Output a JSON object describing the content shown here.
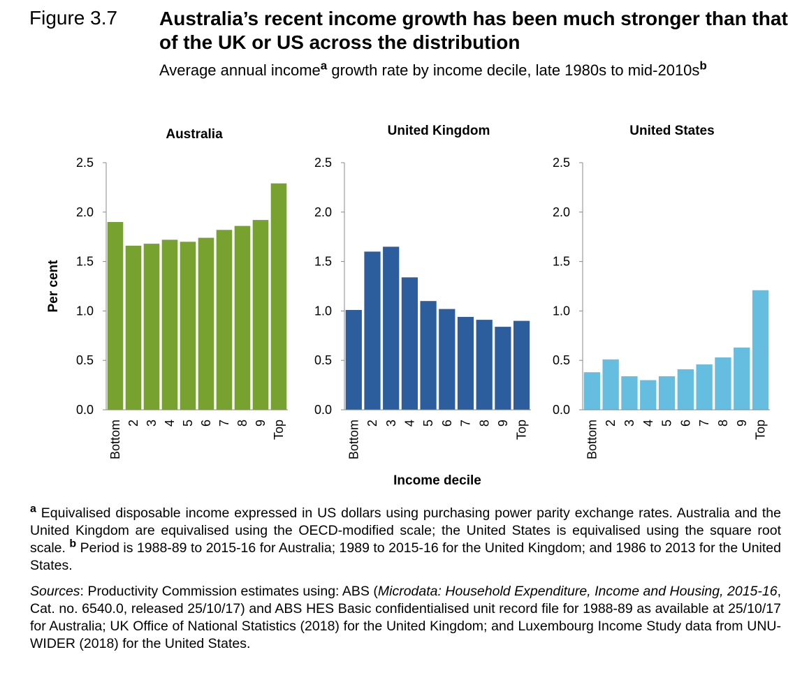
{
  "figure": {
    "number": "Figure 3.7",
    "title": "Australia’s recent income growth has been much stronger than that of the UK or US across the distribution",
    "subtitle_text": "Average annual income",
    "subtitle_mark_a": "a",
    "subtitle_text2": " growth rate by income decile, late 1980s to mid-2010s",
    "subtitle_mark_b": "b"
  },
  "chart_data": [
    {
      "type": "bar",
      "title": "Australia",
      "color": "#78a22f",
      "categories": [
        "Bottom",
        "2",
        "3",
        "4",
        "5",
        "6",
        "7",
        "8",
        "9",
        "Top"
      ],
      "values": [
        1.9,
        1.66,
        1.68,
        1.72,
        1.7,
        1.74,
        1.82,
        1.86,
        1.92,
        2.29
      ],
      "ylabel": "Per cent",
      "xlabel": "",
      "ylim": [
        0,
        2.5
      ],
      "yticks": [
        "0.0",
        "0.5",
        "1.0",
        "1.5",
        "2.0",
        "2.5"
      ],
      "grid": false
    },
    {
      "type": "bar",
      "title": "United Kingdom",
      "color": "#2c5d9d",
      "categories": [
        "Bottom",
        "2",
        "3",
        "4",
        "5",
        "6",
        "7",
        "8",
        "9",
        "Top"
      ],
      "values": [
        1.01,
        1.6,
        1.65,
        1.34,
        1.1,
        1.02,
        0.94,
        0.91,
        0.84,
        0.9
      ],
      "ylabel": "",
      "xlabel": "Income decile",
      "ylim": [
        0,
        2.5
      ],
      "yticks": [
        "0.0",
        "0.5",
        "1.0",
        "1.5",
        "2.0",
        "2.5"
      ],
      "grid": false
    },
    {
      "type": "bar",
      "title": "United States",
      "color": "#65bde0",
      "categories": [
        "Bottom",
        "2",
        "3",
        "4",
        "5",
        "6",
        "7",
        "8",
        "9",
        "Top"
      ],
      "values": [
        0.38,
        0.51,
        0.34,
        0.3,
        0.34,
        0.41,
        0.46,
        0.53,
        0.63,
        1.21
      ],
      "ylabel": "",
      "xlabel": "",
      "ylim": [
        0,
        2.5
      ],
      "yticks": [
        "0.0",
        "0.5",
        "1.0",
        "1.5",
        "2.0",
        "2.5"
      ],
      "grid": false
    }
  ],
  "notes": {
    "a_mark": "a",
    "a_text": " Equivalised disposable income expressed in US dollars using purchasing power parity exchange rates. Australia and the United Kingdom are equivalised using the OECD-modified scale; the United States is equivalised using the square root scale. ",
    "b_mark": "b",
    "b_text": " Period is 1988-89 to 2015-16 for Australia; 1989 to 2015-16 for the United Kingdom; and 1986 to 2013 for the United States.",
    "sources_label": "Sources",
    "sources_t1": ": Productivity Commission estimates using: ABS (",
    "sources_i1": "Microdata: Household Expenditure, Income and Housing, 2015-16",
    "sources_t2": ", Cat. no. 6540.0, released 25/10/17) and ABS HES Basic confidentialised unit record file for 1988-89 as available at 25/10/17 for Australia; UK Office of National Statistics (2018) for the United Kingdom; and Luxembourg Income Study data from UNU-WIDER (2018) for the United States."
  }
}
